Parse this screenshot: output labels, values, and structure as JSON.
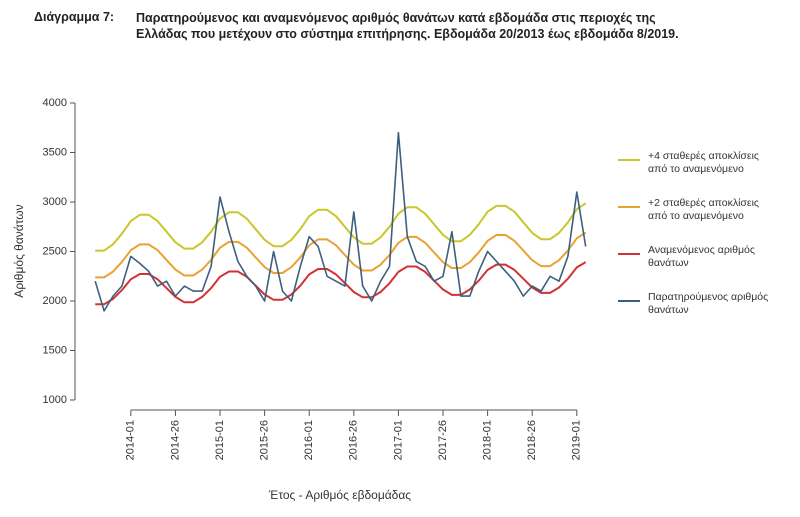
{
  "chart_data": {
    "type": "line",
    "title_label": "Διάγραμμα 7:",
    "title": "Παρατηρούμενος και αναμενόμενος αριθμός θανάτων κατά εβδομάδα στις περιοχές της Ελλάδας που μετέχουν στο σύστημα επιτήρησης. Εβδομάδα 20/2013 έως εβδομάδα 8/2019.",
    "xlabel": "Έτος - Αριθμός εβδομάδας",
    "ylabel": "Αριθμός θανάτων",
    "x": [
      2013.6,
      2013.7,
      2013.8,
      2013.9,
      2014.0,
      2014.1,
      2014.2,
      2014.3,
      2014.4,
      2014.5,
      2014.6,
      2014.7,
      2014.8,
      2014.9,
      2015.0,
      2015.1,
      2015.2,
      2015.3,
      2015.4,
      2015.5,
      2015.6,
      2015.7,
      2015.8,
      2015.9,
      2016.0,
      2016.1,
      2016.2,
      2016.3,
      2016.4,
      2016.5,
      2016.6,
      2016.7,
      2016.8,
      2016.9,
      2017.0,
      2017.1,
      2017.2,
      2017.3,
      2017.4,
      2017.5,
      2017.6,
      2017.7,
      2017.8,
      2017.9,
      2018.0,
      2018.1,
      2018.2,
      2018.3,
      2018.4,
      2018.5,
      2018.6,
      2018.7,
      2018.8,
      2018.9,
      2019.0,
      2019.1
    ],
    "xlim": [
      2013.43,
      2019.26
    ],
    "xticks": [
      {
        "value": 2014.0,
        "label": "2014-01"
      },
      {
        "value": 2014.5,
        "label": "2014-26"
      },
      {
        "value": 2015.0,
        "label": "2015-01"
      },
      {
        "value": 2015.5,
        "label": "2015-26"
      },
      {
        "value": 2016.0,
        "label": "2016-01"
      },
      {
        "value": 2016.5,
        "label": "2016-26"
      },
      {
        "value": 2017.0,
        "label": "2017-01"
      },
      {
        "value": 2017.5,
        "label": "2017-26"
      },
      {
        "value": 2018.0,
        "label": "2018-01"
      },
      {
        "value": 2018.5,
        "label": "2018-26"
      },
      {
        "value": 2019.0,
        "label": "2019-01"
      }
    ],
    "ylim": [
      1000,
      4000
    ],
    "yticks": [
      1000,
      1500,
      2000,
      2500,
      3000,
      3500,
      4000
    ],
    "series": [
      {
        "name": "+4 σταθερές αποκλίσεις από το αναμενόμενο",
        "color": "#c9c72a",
        "values": [
          2509,
          2509,
          2573,
          2680,
          2807,
          2871,
          2871,
          2807,
          2700,
          2593,
          2529,
          2529,
          2593,
          2700,
          2832,
          2896,
          2896,
          2832,
          2725,
          2618,
          2554,
          2554,
          2618,
          2725,
          2857,
          2921,
          2921,
          2857,
          2750,
          2643,
          2579,
          2579,
          2643,
          2750,
          2882,
          2946,
          2946,
          2882,
          2775,
          2668,
          2604,
          2604,
          2668,
          2775,
          2902,
          2961,
          2961,
          2902,
          2795,
          2688,
          2624,
          2624,
          2688,
          2795,
          2927,
          2986
        ]
      },
      {
        "name": "+2 σταθερές αποκλίσεις από το αναμενόμενο",
        "color": "#e9a232",
        "values": [
          2238,
          2238,
          2297,
          2395,
          2513,
          2572,
          2572,
          2513,
          2415,
          2317,
          2258,
          2258,
          2317,
          2415,
          2538,
          2597,
          2597,
          2538,
          2440,
          2342,
          2283,
          2283,
          2342,
          2440,
          2563,
          2622,
          2622,
          2563,
          2465,
          2367,
          2308,
          2308,
          2367,
          2465,
          2588,
          2647,
          2647,
          2588,
          2490,
          2392,
          2333,
          2333,
          2392,
          2490,
          2608,
          2667,
          2667,
          2608,
          2510,
          2412,
          2353,
          2353,
          2412,
          2510,
          2633,
          2692
        ]
      },
      {
        "name": "Αναμενόμενος αριθμός θανάτων",
        "color": "#d23232",
        "values": [
          1967,
          1967,
          2021,
          2110,
          2219,
          2273,
          2273,
          2219,
          2130,
          2041,
          1987,
          1987,
          2041,
          2130,
          2244,
          2298,
          2298,
          2244,
          2155,
          2066,
          2012,
          2012,
          2066,
          2155,
          2269,
          2323,
          2323,
          2269,
          2180,
          2091,
          2037,
          2037,
          2091,
          2180,
          2294,
          2348,
          2348,
          2294,
          2205,
          2116,
          2062,
          2062,
          2116,
          2205,
          2314,
          2368,
          2368,
          2314,
          2225,
          2136,
          2082,
          2082,
          2136,
          2225,
          2339,
          2393
        ]
      },
      {
        "name": "Παρατηρούμενος αριθμός θανάτων",
        "color": "#3e5f7e",
        "values": [
          2200,
          1900,
          2050,
          2150,
          2450,
          2380,
          2300,
          2150,
          2200,
          2050,
          2150,
          2100,
          2100,
          2350,
          3050,
          2700,
          2400,
          2250,
          2150,
          2000,
          2500,
          2100,
          2000,
          2350,
          2650,
          2550,
          2250,
          2200,
          2150,
          2900,
          2150,
          2000,
          2200,
          2350,
          3700,
          2650,
          2400,
          2350,
          2200,
          2250,
          2700,
          2050,
          2050,
          2300,
          2500,
          2400,
          2300,
          2200,
          2050,
          2150,
          2100,
          2250,
          2200,
          2450,
          3100,
          2550
        ]
      }
    ]
  }
}
